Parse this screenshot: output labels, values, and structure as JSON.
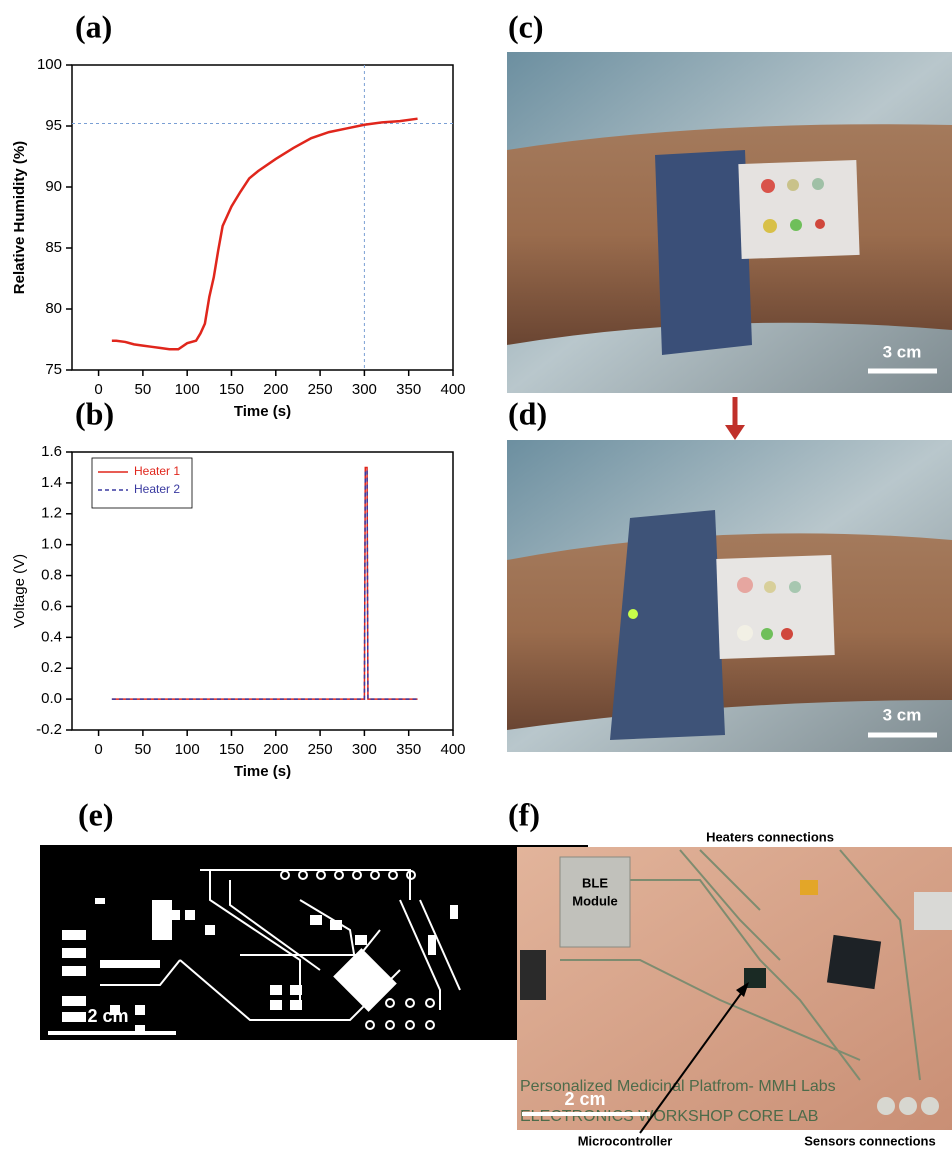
{
  "chart_data": [
    {
      "type": "line",
      "panel_label": "(a)",
      "x_label": "Time (s)",
      "y_label": "Relative Humidity (%)",
      "label_bold": true,
      "x": [
        15,
        20,
        30,
        40,
        50,
        60,
        70,
        80,
        90,
        100,
        110,
        115,
        120,
        125,
        130,
        135,
        140,
        150,
        160,
        170,
        180,
        200,
        220,
        240,
        260,
        280,
        300,
        320,
        340,
        360
      ],
      "values": [
        77.4,
        77.4,
        77.3,
        77.1,
        77.0,
        76.9,
        76.8,
        76.7,
        76.7,
        77.2,
        77.4,
        78.0,
        78.8,
        81.0,
        82.6,
        84.8,
        86.8,
        88.4,
        89.6,
        90.7,
        91.3,
        92.3,
        93.2,
        94.0,
        94.5,
        94.8,
        95.1,
        95.3,
        95.4,
        95.6
      ],
      "color": "#e0261c",
      "ref_x": 300,
      "ref_y": 95.2,
      "ref_color": "#7a9fd4",
      "xlim": [
        -30,
        400
      ],
      "xticks": [
        0,
        50,
        100,
        150,
        200,
        250,
        300,
        350,
        400
      ],
      "ylim": [
        75,
        100
      ],
      "yticks": [
        75,
        80,
        85,
        90,
        95,
        100
      ]
    },
    {
      "type": "line",
      "panel_label": "(b)",
      "x_label": "Time (s)",
      "y_label": "Voltage (V)",
      "label_bold": false,
      "legend": "upper left",
      "x": [
        15,
        300,
        301,
        303,
        304,
        360
      ],
      "series": [
        {
          "name": "Heater 1",
          "color": "#e0261c",
          "dash": false,
          "values": [
            0,
            0,
            1.5,
            1.5,
            0,
            0
          ]
        },
        {
          "name": "Heater 2",
          "color": "#3a3aa0",
          "dash": true,
          "values": [
            0,
            0,
            1.48,
            1.48,
            0,
            0
          ]
        }
      ],
      "xlim": [
        -30,
        400
      ],
      "xticks": [
        0,
        50,
        100,
        150,
        200,
        250,
        300,
        350,
        400
      ],
      "ylim": [
        -0.2,
        1.6
      ],
      "yticks": [
        -0.2,
        {
          "value": 0,
          "label": "0.0"
        },
        0.2,
        0.4,
        0.6,
        0.8,
        {
          "value": 1,
          "label": "1.0"
        },
        1.2,
        1.4,
        1.6
      ]
    }
  ],
  "photo_c": {
    "panel_label": "(c)",
    "scale_bar": "3 cm"
  },
  "photo_d": {
    "panel_label": "(d)",
    "scale_bar": "3 cm"
  },
  "pcb_e": {
    "panel_label": "(e)",
    "scale_bar": "2 cm"
  },
  "board_f": {
    "panel_label": "(f)",
    "heaters": "Heaters connections",
    "module": [
      "BLE",
      "Module"
    ],
    "platform": "Personalized Medicinal Platfrom- MMH Labs",
    "lab": "ELECTRONICS WORKSHOP CORE LAB",
    "scale_bar": "2 cm",
    "microcontroller": "Microcontroller",
    "sensors": "Sensors connections"
  }
}
